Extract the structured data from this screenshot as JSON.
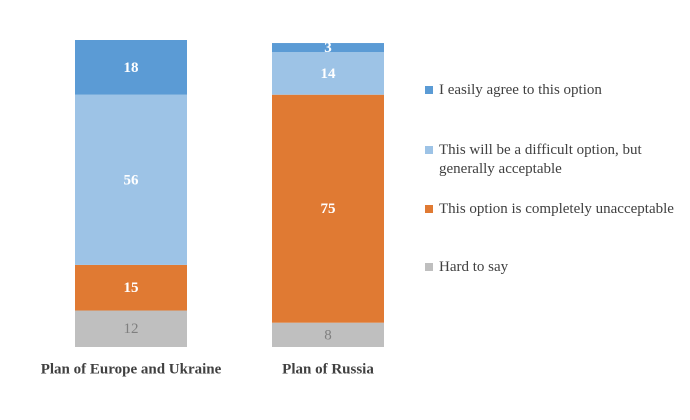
{
  "chart_data": {
    "type": "stacked-bar",
    "categories": [
      "Plan of Europe and Ukraine",
      "Plan of Russia"
    ],
    "series": [
      {
        "name": "I easily agree to this option",
        "color": "#5b9bd5",
        "values": [
          18,
          3
        ]
      },
      {
        "name": "This will be a difficult option, but generally acceptable",
        "color": "#9dc3e6",
        "values": [
          56,
          14
        ]
      },
      {
        "name": "This option is completely unacceptable",
        "color": "#e07a33",
        "values": [
          15,
          75
        ]
      },
      {
        "name": "Hard to say",
        "color": "#bfbfbf",
        "values": [
          12,
          8
        ]
      }
    ],
    "legend": "right"
  }
}
